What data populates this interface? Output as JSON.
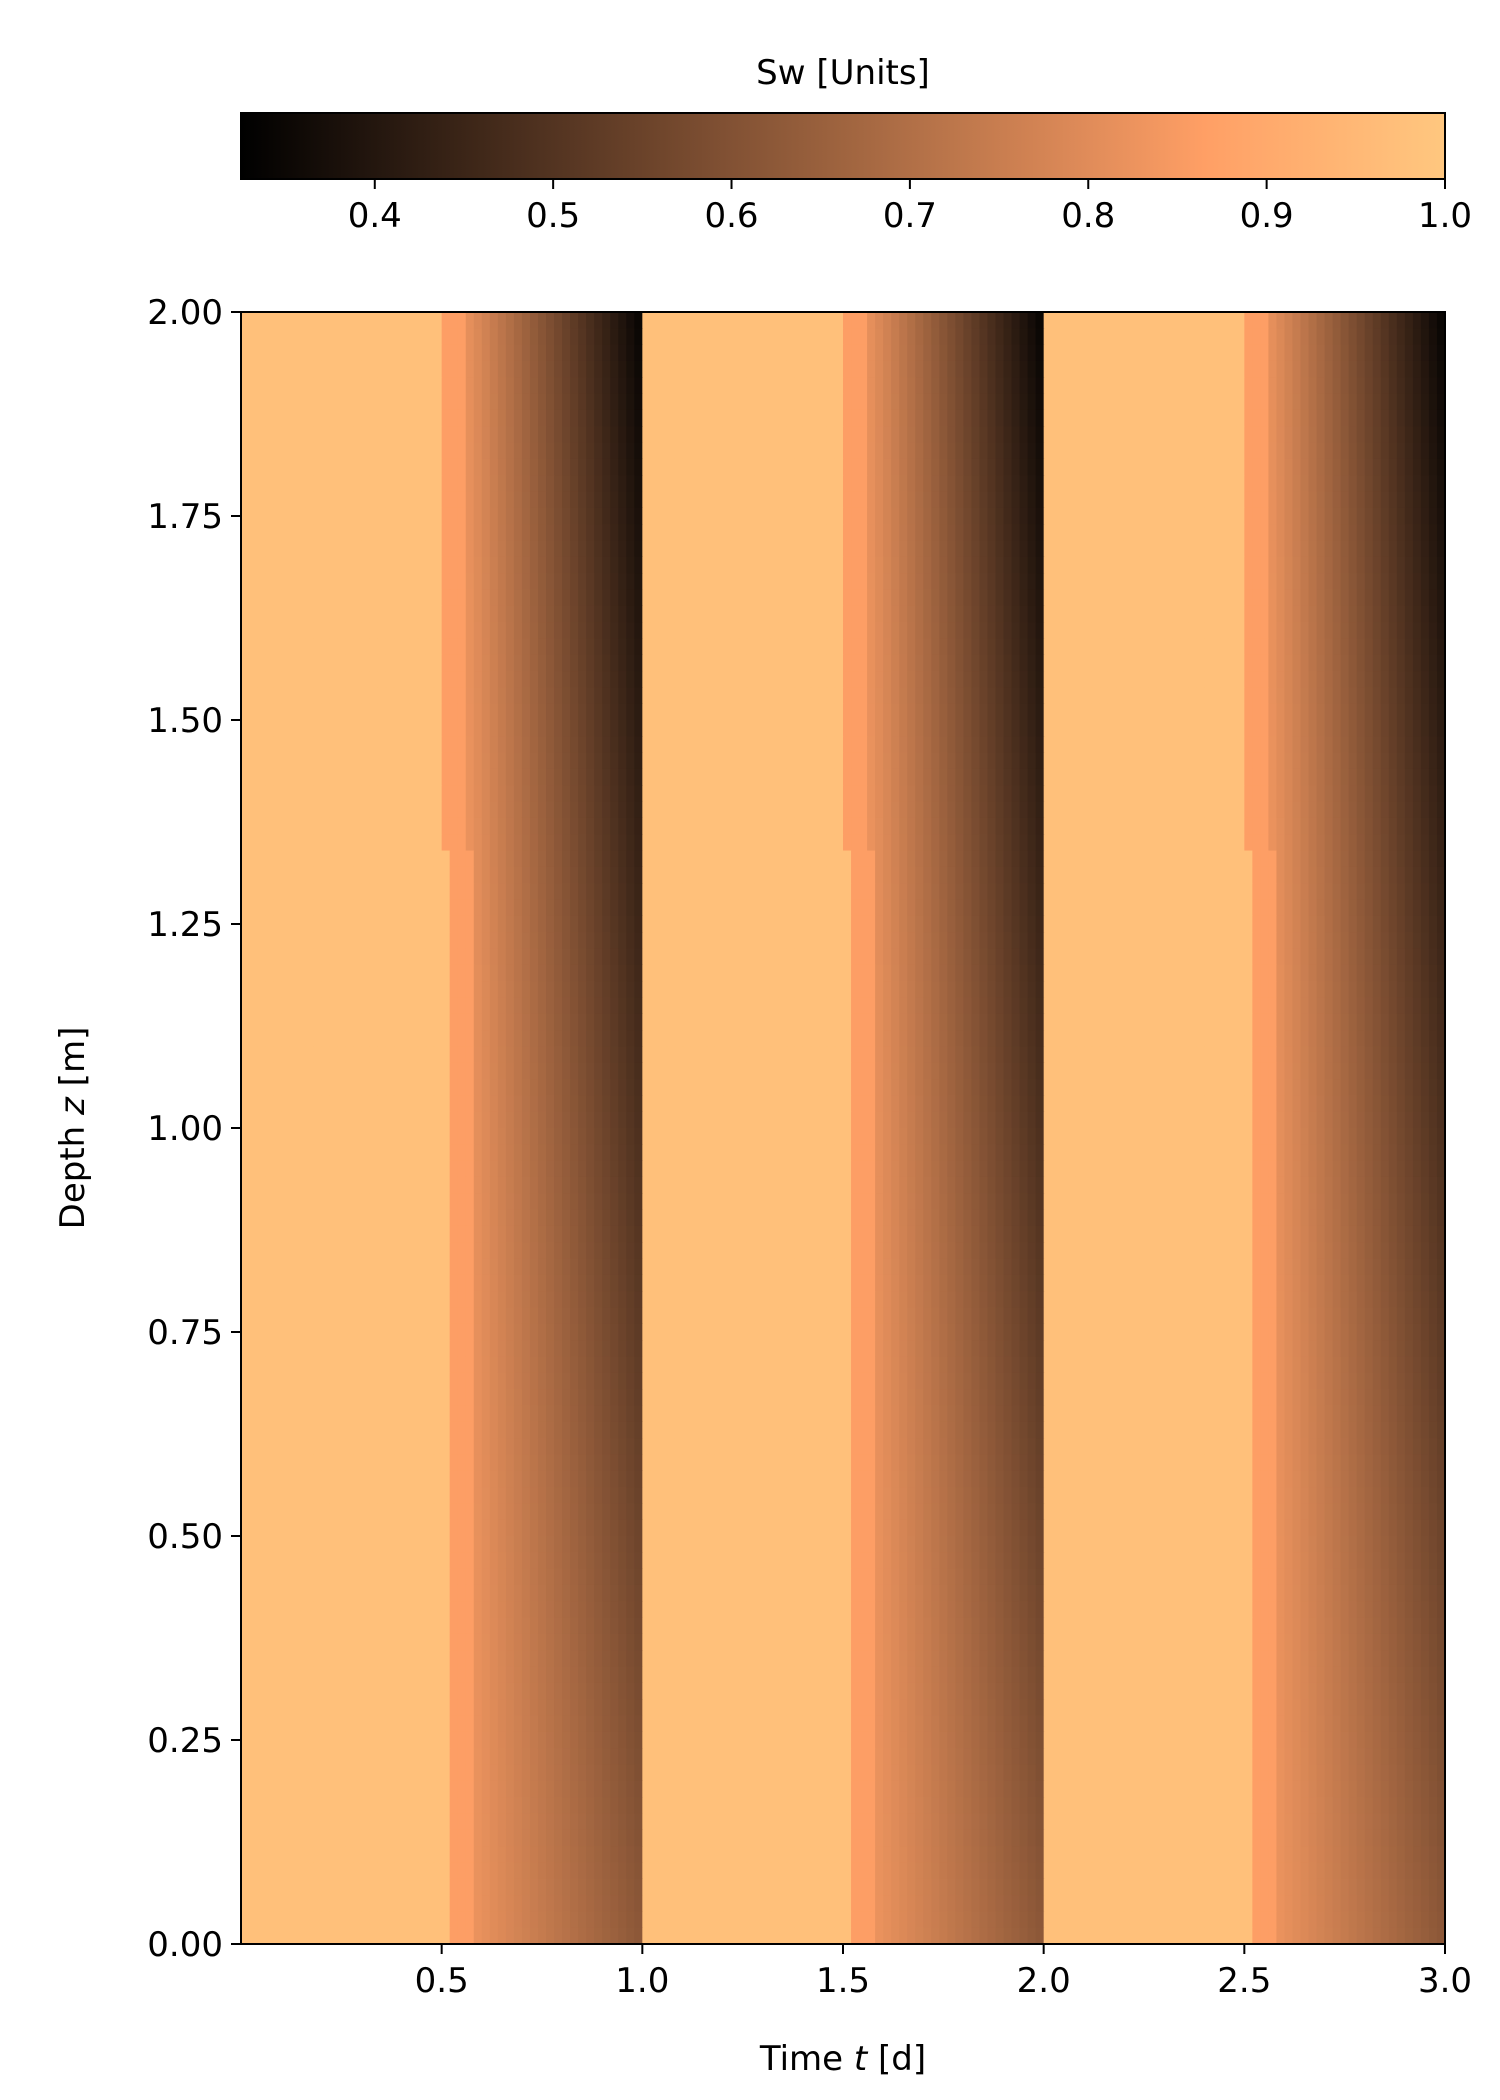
{
  "chart_data": {
    "type": "heatmap",
    "colormap": "copper",
    "colorbar": {
      "title": "Sw [Units]",
      "range": [
        0.325,
        1.0
      ],
      "ticks": [
        0.4,
        0.5,
        0.6,
        0.7,
        0.8,
        0.9,
        1.0
      ],
      "tick_labels": [
        "0.4",
        "0.5",
        "0.6",
        "0.7",
        "0.8",
        "0.9",
        "1.0"
      ],
      "placement": "top"
    },
    "xlabel_pre": "Time ",
    "xlabel_var": "t",
    "xlabel_post": " [d]",
    "ylabel_pre": "Depth ",
    "ylabel_var": "z",
    "ylabel_post": " [m]",
    "xlim": [
      0.0,
      3.0
    ],
    "ylim": [
      0.0,
      2.0
    ],
    "x_ticks": [
      0.5,
      1.0,
      1.5,
      2.0,
      2.5,
      3.0
    ],
    "x_tick_labels": [
      "0.5",
      "1.0",
      "1.5",
      "2.0",
      "2.5",
      "3.0"
    ],
    "y_ticks": [
      0.0,
      0.25,
      0.5,
      0.75,
      1.0,
      1.25,
      1.5,
      1.75,
      2.0
    ],
    "y_tick_labels": [
      "0.00",
      "0.25",
      "0.50",
      "0.75",
      "1.00",
      "1.25",
      "1.50",
      "1.75",
      "2.00"
    ],
    "grid": false,
    "cycles": [
      {
        "drain_start": 0.0,
        "wet_front": [
          [
            2.0,
            1.0
          ],
          [
            1.55,
            1.03
          ],
          [
            1.05,
            1.05
          ],
          [
            0.54,
            1.08
          ],
          [
            0.0,
            1.08
          ]
        ]
      },
      {
        "drain_start": 1.0,
        "wet_front": [
          [
            2.0,
            2.0
          ],
          [
            1.55,
            2.03
          ],
          [
            1.05,
            2.05
          ],
          [
            0.54,
            2.08
          ],
          [
            0.0,
            2.08
          ]
        ]
      },
      {
        "drain_start": 2.0,
        "wet_front": [
          [
            2.0,
            3.0
          ],
          [
            0.0,
            3.0
          ]
        ]
      }
    ],
    "wet_value": 0.975,
    "drain_onset_offset": [
      0.5,
      0.53
    ],
    "min_value_at_top": 0.325,
    "min_value_at_bottom": 0.6
  }
}
